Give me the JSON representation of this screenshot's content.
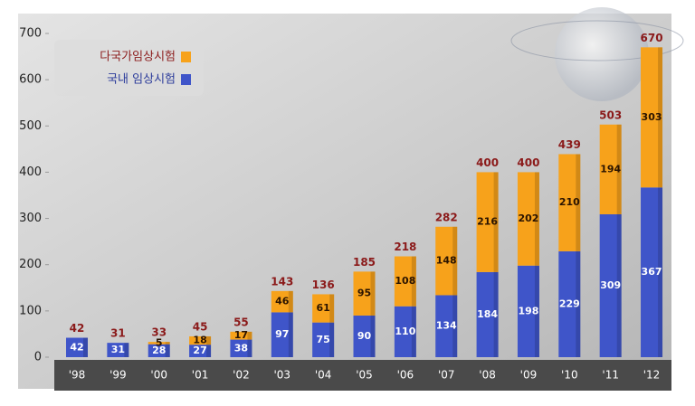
{
  "chart_data": {
    "type": "stacked-bar",
    "categories": [
      "'98",
      "'99",
      "'00",
      "'01",
      "'02",
      "'03",
      "'04",
      "'05",
      "'06",
      "'07",
      "'08",
      "'09",
      "'10",
      "'11",
      "'12"
    ],
    "series": [
      {
        "name": "국내 임상시험",
        "color": "#3f55c9",
        "values": [
          42,
          31,
          28,
          27,
          38,
          97,
          75,
          90,
          110,
          134,
          184,
          198,
          229,
          309,
          367
        ]
      },
      {
        "name": "다국가임상시험",
        "color": "#f7a21b",
        "values": [
          null,
          null,
          5,
          18,
          17,
          46,
          61,
          95,
          108,
          148,
          216,
          202,
          210,
          194,
          303
        ]
      }
    ],
    "totals": [
      42,
      31,
      33,
      45,
      55,
      143,
      136,
      185,
      218,
      282,
      400,
      400,
      439,
      503,
      670
    ],
    "ylim": [
      0,
      700
    ],
    "yticks": [
      0,
      100,
      200,
      300,
      400,
      500,
      600,
      700
    ],
    "legend": "top-left"
  }
}
